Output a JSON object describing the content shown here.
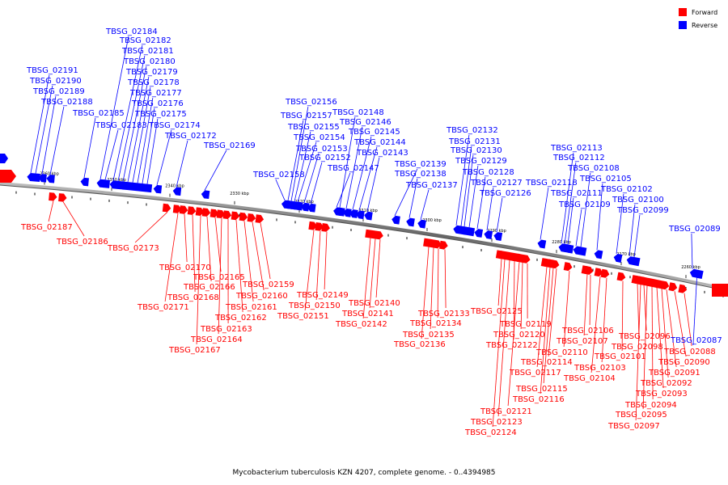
{
  "caption": "Mycobacterium tuberculosis KZN 4207, complete genome. - 0..4394985",
  "legend": [
    {
      "label": "Forward",
      "color": "#ff0000"
    },
    {
      "label": "Reverse",
      "color": "#0000ff"
    }
  ],
  "colors": {
    "forward": "#ff0000",
    "reverse": "#0000ff",
    "backbone": "#888888"
  },
  "ticks": [
    "2360 kbp",
    "2350 kbp",
    "2340 kbp",
    "2330 kbp",
    "2320 kbp",
    "2310 kbp",
    "2300 kbp",
    "2290 kbp",
    "2280 kbp",
    "2270 kbp",
    "2260 kbp"
  ],
  "genes": [
    {
      "id": "TBSG_02191",
      "strand": "reverse"
    },
    {
      "id": "TBSG_02190",
      "strand": "reverse"
    },
    {
      "id": "TBSG_02189",
      "strand": "reverse"
    },
    {
      "id": "TBSG_02188",
      "strand": "reverse"
    },
    {
      "id": "TBSG_02187",
      "strand": "forward"
    },
    {
      "id": "TBSG_02186",
      "strand": "forward"
    },
    {
      "id": "TBSG_02185",
      "strand": "reverse"
    },
    {
      "id": "TBSG_02184",
      "strand": "reverse"
    },
    {
      "id": "TBSG_02183",
      "strand": "reverse"
    },
    {
      "id": "TBSG_02182",
      "strand": "reverse"
    },
    {
      "id": "TBSG_02181",
      "strand": "reverse"
    },
    {
      "id": "TBSG_02180",
      "strand": "reverse"
    },
    {
      "id": "TBSG_02179",
      "strand": "reverse"
    },
    {
      "id": "TBSG_02178",
      "strand": "reverse"
    },
    {
      "id": "TBSG_02177",
      "strand": "reverse"
    },
    {
      "id": "TBSG_02176",
      "strand": "reverse"
    },
    {
      "id": "TBSG_02175",
      "strand": "reverse"
    },
    {
      "id": "TBSG_02174",
      "strand": "reverse"
    },
    {
      "id": "TBSG_02173",
      "strand": "forward"
    },
    {
      "id": "TBSG_02172",
      "strand": "reverse"
    },
    {
      "id": "TBSG_02171",
      "strand": "forward"
    },
    {
      "id": "TBSG_02170",
      "strand": "forward"
    },
    {
      "id": "TBSG_02169",
      "strand": "reverse"
    },
    {
      "id": "TBSG_02168",
      "strand": "forward"
    },
    {
      "id": "TBSG_02167",
      "strand": "forward"
    },
    {
      "id": "TBSG_02166",
      "strand": "forward"
    },
    {
      "id": "TBSG_02165",
      "strand": "forward"
    },
    {
      "id": "TBSG_02164",
      "strand": "forward"
    },
    {
      "id": "TBSG_02163",
      "strand": "forward"
    },
    {
      "id": "TBSG_02162",
      "strand": "forward"
    },
    {
      "id": "TBSG_02161",
      "strand": "forward"
    },
    {
      "id": "TBSG_02160",
      "strand": "forward"
    },
    {
      "id": "TBSG_02159",
      "strand": "forward"
    },
    {
      "id": "TBSG_02158",
      "strand": "reverse"
    },
    {
      "id": "TBSG_02157",
      "strand": "reverse"
    },
    {
      "id": "TBSG_02156",
      "strand": "reverse"
    },
    {
      "id": "TBSG_02155",
      "strand": "reverse"
    },
    {
      "id": "TBSG_02154",
      "strand": "reverse"
    },
    {
      "id": "TBSG_02153",
      "strand": "reverse"
    },
    {
      "id": "TBSG_02152",
      "strand": "reverse"
    },
    {
      "id": "TBSG_02151",
      "strand": "forward"
    },
    {
      "id": "TBSG_02150",
      "strand": "forward"
    },
    {
      "id": "TBSG_02149",
      "strand": "forward"
    },
    {
      "id": "TBSG_02148",
      "strand": "reverse"
    },
    {
      "id": "TBSG_02147",
      "strand": "reverse"
    },
    {
      "id": "TBSG_02146",
      "strand": "reverse"
    },
    {
      "id": "TBSG_02145",
      "strand": "reverse"
    },
    {
      "id": "TBSG_02144",
      "strand": "reverse"
    },
    {
      "id": "TBSG_02143",
      "strand": "reverse"
    },
    {
      "id": "TBSG_02142",
      "strand": "forward"
    },
    {
      "id": "TBSG_02141",
      "strand": "forward"
    },
    {
      "id": "TBSG_02140",
      "strand": "forward"
    },
    {
      "id": "TBSG_02139",
      "strand": "reverse"
    },
    {
      "id": "TBSG_02138",
      "strand": "reverse"
    },
    {
      "id": "TBSG_02137",
      "strand": "reverse"
    },
    {
      "id": "TBSG_02136",
      "strand": "forward"
    },
    {
      "id": "TBSG_02135",
      "strand": "forward"
    },
    {
      "id": "TBSG_02134",
      "strand": "forward"
    },
    {
      "id": "TBSG_02133",
      "strand": "forward"
    },
    {
      "id": "TBSG_02132",
      "strand": "reverse"
    },
    {
      "id": "TBSG_02131",
      "strand": "reverse"
    },
    {
      "id": "TBSG_02130",
      "strand": "reverse"
    },
    {
      "id": "TBSG_02129",
      "strand": "reverse"
    },
    {
      "id": "TBSG_02128",
      "strand": "reverse"
    },
    {
      "id": "TBSG_02127",
      "strand": "reverse"
    },
    {
      "id": "TBSG_02126",
      "strand": "reverse"
    },
    {
      "id": "TBSG_02125",
      "strand": "forward"
    },
    {
      "id": "TBSG_02124",
      "strand": "forward"
    },
    {
      "id": "TBSG_02123",
      "strand": "forward"
    },
    {
      "id": "TBSG_02122",
      "strand": "forward"
    },
    {
      "id": "TBSG_02121",
      "strand": "forward"
    },
    {
      "id": "TBSG_02120",
      "strand": "forward"
    },
    {
      "id": "TBSG_02119",
      "strand": "forward"
    },
    {
      "id": "TBSG_02118",
      "strand": "reverse"
    },
    {
      "id": "TBSG_02117",
      "strand": "forward"
    },
    {
      "id": "TBSG_02116",
      "strand": "forward"
    },
    {
      "id": "TBSG_02115",
      "strand": "forward"
    },
    {
      "id": "TBSG_02114",
      "strand": "forward"
    },
    {
      "id": "TBSG_02113",
      "strand": "reverse"
    },
    {
      "id": "TBSG_02112",
      "strand": "reverse"
    },
    {
      "id": "TBSG_02111",
      "strand": "reverse"
    },
    {
      "id": "TBSG_02110",
      "strand": "forward"
    },
    {
      "id": "TBSG_02109",
      "strand": "reverse"
    },
    {
      "id": "TBSG_02108",
      "strand": "reverse"
    },
    {
      "id": "TBSG_02107",
      "strand": "forward"
    },
    {
      "id": "TBSG_02106",
      "strand": "forward"
    },
    {
      "id": "TBSG_02105",
      "strand": "reverse"
    },
    {
      "id": "TBSG_02104",
      "strand": "forward"
    },
    {
      "id": "TBSG_02103",
      "strand": "forward"
    },
    {
      "id": "TBSG_02102",
      "strand": "reverse"
    },
    {
      "id": "TBSG_02101",
      "strand": "forward"
    },
    {
      "id": "TBSG_02100",
      "strand": "reverse"
    },
    {
      "id": "TBSG_02099",
      "strand": "reverse"
    },
    {
      "id": "TBSG_02098",
      "strand": "forward"
    },
    {
      "id": "TBSG_02097",
      "strand": "forward"
    },
    {
      "id": "TBSG_02096",
      "strand": "forward"
    },
    {
      "id": "TBSG_02095",
      "strand": "forward"
    },
    {
      "id": "TBSG_02094",
      "strand": "forward"
    },
    {
      "id": "TBSG_02093",
      "strand": "forward"
    },
    {
      "id": "TBSG_02092",
      "strand": "forward"
    },
    {
      "id": "TBSG_02091",
      "strand": "forward"
    },
    {
      "id": "TBSG_02090",
      "strand": "forward"
    },
    {
      "id": "TBSG_02089",
      "strand": "reverse"
    },
    {
      "id": "TBSG_02088",
      "strand": "forward"
    },
    {
      "id": "TBSG_02087",
      "strand": "reverse"
    }
  ]
}
